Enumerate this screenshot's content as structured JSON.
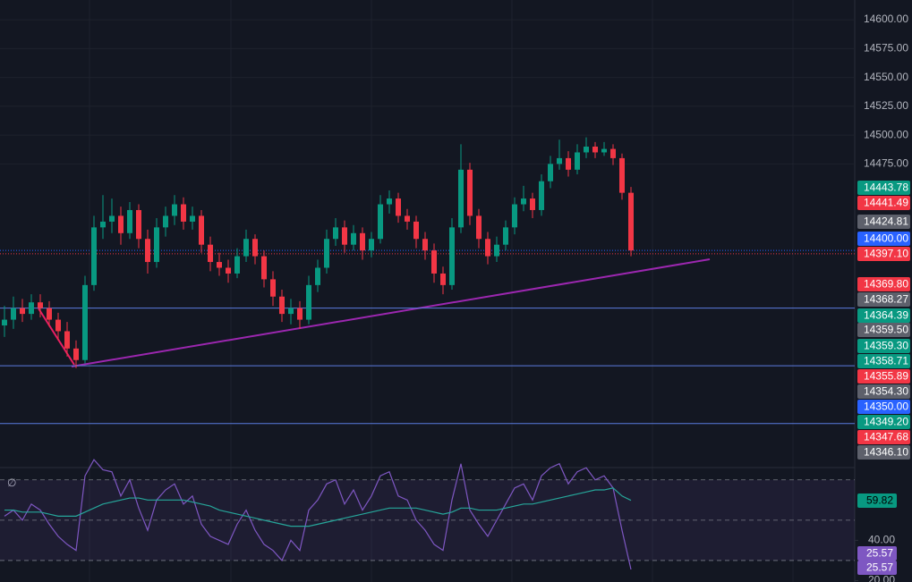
{
  "chart_data": {
    "type": "candlestick",
    "ylim": [
      14211.8,
      14617.1
    ],
    "yticks": [
      {
        "value": 14600,
        "label": "14600.00"
      },
      {
        "value": 14575,
        "label": "14575.00"
      },
      {
        "value": 14550,
        "label": "14550.00"
      },
      {
        "value": 14525,
        "label": "14525.00"
      },
      {
        "value": 14500,
        "label": "14500.00"
      },
      {
        "value": 14475,
        "label": "14475.00"
      }
    ],
    "up_color": "#089981",
    "down_color": "#f23645",
    "candles": [
      [
        14335,
        14352,
        14325,
        14340
      ],
      [
        14340,
        14360,
        14332,
        14350
      ],
      [
        14350,
        14358,
        14338,
        14345
      ],
      [
        14345,
        14362,
        14340,
        14355
      ],
      [
        14355,
        14362,
        14342,
        14350
      ],
      [
        14350,
        14356,
        14334,
        14340
      ],
      [
        14340,
        14346,
        14322,
        14330
      ],
      [
        14330,
        14338,
        14308,
        14315
      ],
      [
        14315,
        14322,
        14298,
        14305
      ],
      [
        14305,
        14378,
        14302,
        14370
      ],
      [
        14370,
        14430,
        14365,
        14420
      ],
      [
        14420,
        14448,
        14410,
        14425
      ],
      [
        14425,
        14445,
        14415,
        14430
      ],
      [
        14430,
        14438,
        14405,
        14415
      ],
      [
        14415,
        14442,
        14410,
        14435
      ],
      [
        14435,
        14440,
        14402,
        14410
      ],
      [
        14410,
        14418,
        14380,
        14390
      ],
      [
        14390,
        14428,
        14385,
        14420
      ],
      [
        14420,
        14438,
        14412,
        14430
      ],
      [
        14430,
        14448,
        14422,
        14440
      ],
      [
        14440,
        14446,
        14418,
        14425
      ],
      [
        14425,
        14438,
        14418,
        14430
      ],
      [
        14430,
        14435,
        14398,
        14405
      ],
      [
        14405,
        14412,
        14382,
        14390
      ],
      [
        14390,
        14398,
        14378,
        14385
      ],
      [
        14385,
        14392,
        14372,
        14380
      ],
      [
        14380,
        14402,
        14376,
        14395
      ],
      [
        14395,
        14418,
        14390,
        14410
      ],
      [
        14410,
        14414,
        14388,
        14395
      ],
      [
        14395,
        14400,
        14368,
        14375
      ],
      [
        14375,
        14382,
        14352,
        14360
      ],
      [
        14360,
        14366,
        14338,
        14345
      ],
      [
        14345,
        14358,
        14336,
        14350
      ],
      [
        14350,
        14356,
        14332,
        14340
      ],
      [
        14340,
        14378,
        14336,
        14370
      ],
      [
        14370,
        14392,
        14364,
        14385
      ],
      [
        14385,
        14418,
        14380,
        14410
      ],
      [
        14410,
        14428,
        14404,
        14420
      ],
      [
        14420,
        14426,
        14398,
        14405
      ],
      [
        14405,
        14422,
        14400,
        14415
      ],
      [
        14415,
        14420,
        14392,
        14400
      ],
      [
        14400,
        14416,
        14394,
        14410
      ],
      [
        14410,
        14448,
        14406,
        14440
      ],
      [
        14440,
        14452,
        14432,
        14445
      ],
      [
        14445,
        14450,
        14424,
        14430
      ],
      [
        14430,
        14436,
        14418,
        14425
      ],
      [
        14425,
        14430,
        14402,
        14410
      ],
      [
        14410,
        14416,
        14392,
        14400
      ],
      [
        14400,
        14406,
        14372,
        14380
      ],
      [
        14380,
        14386,
        14362,
        14370
      ],
      [
        14370,
        14428,
        14366,
        14420
      ],
      [
        14420,
        14492,
        14415,
        14470
      ],
      [
        14470,
        14476,
        14422,
        14430
      ],
      [
        14430,
        14436,
        14402,
        14410
      ],
      [
        14410,
        14416,
        14388,
        14395
      ],
      [
        14395,
        14412,
        14390,
        14405
      ],
      [
        14405,
        14426,
        14400,
        14420
      ],
      [
        14420,
        14446,
        14414,
        14440
      ],
      [
        14440,
        14456,
        14434,
        14445
      ],
      [
        14445,
        14450,
        14428,
        14435
      ],
      [
        14435,
        14466,
        14430,
        14460
      ],
      [
        14460,
        14482,
        14454,
        14475
      ],
      [
        14475,
        14496,
        14470,
        14480
      ],
      [
        14480,
        14486,
        14464,
        14470
      ],
      [
        14470,
        14492,
        14466,
        14485
      ],
      [
        14485,
        14498,
        14480,
        14490
      ],
      [
        14490,
        14494,
        14480,
        14485
      ],
      [
        14485,
        14494,
        14482,
        14488
      ],
      [
        14488,
        14492,
        14474,
        14480
      ],
      [
        14480,
        14484,
        14444,
        14450
      ],
      [
        14450,
        14455,
        14395,
        14400
      ]
    ],
    "levels": [
      14400,
      14397.1,
      14350,
      14300,
      14250
    ],
    "level_colors": [
      "#2962ff",
      "#f23645",
      "#5b7be0",
      "#5b7be0",
      "#5b7be0"
    ],
    "price_labels": [
      {
        "text": "14443.78",
        "color": "#089981"
      },
      {
        "text": "14441.49",
        "color": "#f23645"
      },
      {
        "text": "14424.81",
        "color": "#5d606b"
      },
      {
        "text": "14400.00",
        "color": "#2962ff"
      },
      {
        "text": "14397.10",
        "color": "#f23645"
      },
      {
        "text": "14369.80",
        "color": "#f23645"
      },
      {
        "text": "14368.27",
        "color": "#5d606b"
      },
      {
        "text": "14364.39",
        "color": "#089981"
      },
      {
        "text": "14359.50",
        "color": "#5d606b"
      },
      {
        "text": "14359.30",
        "color": "#089981"
      },
      {
        "text": "14358.71",
        "color": "#089981"
      },
      {
        "text": "14355.89",
        "color": "#f23645"
      },
      {
        "text": "14354.30",
        "color": "#5d606b"
      },
      {
        "text": "14350.00",
        "color": "#2962ff"
      },
      {
        "text": "14349.20",
        "color": "#089981"
      },
      {
        "text": "14347.68",
        "color": "#f23645"
      },
      {
        "text": "14346.10",
        "color": "#5d606b"
      }
    ],
    "rsi": {
      "ylim": [
        19.33,
        73
      ],
      "yticks": [
        {
          "value": 40,
          "label": "40.00"
        },
        {
          "value": 20,
          "label": "20.00"
        }
      ],
      "bands": [
        70,
        50,
        30
      ],
      "series": [
        {
          "name": "RSI",
          "color": "#7e57c2",
          "values": [
            52,
            55,
            50,
            58,
            55,
            48,
            42,
            38,
            35,
            72,
            80,
            75,
            74,
            62,
            70,
            56,
            45,
            60,
            65,
            68,
            58,
            62,
            48,
            42,
            40,
            38,
            48,
            55,
            45,
            38,
            35,
            30,
            40,
            35,
            55,
            60,
            68,
            70,
            58,
            65,
            55,
            62,
            72,
            74,
            62,
            60,
            50,
            45,
            38,
            35,
            60,
            78,
            55,
            48,
            42,
            50,
            58,
            66,
            68,
            60,
            72,
            76,
            78,
            68,
            74,
            76,
            70,
            72,
            66,
            45,
            25.57
          ]
        },
        {
          "name": "RSI-based MA",
          "color": "#26a69a",
          "values": [
            55,
            55,
            54,
            54,
            54,
            53,
            52,
            52,
            52,
            54,
            56,
            58,
            59,
            60,
            61,
            61,
            60,
            60,
            60,
            60,
            60,
            59,
            58,
            57,
            55,
            54,
            53,
            52,
            51,
            50,
            49,
            48,
            47,
            47,
            47,
            48,
            49,
            50,
            51,
            52,
            53,
            54,
            55,
            56,
            56,
            56,
            56,
            55,
            54,
            53,
            54,
            56,
            56,
            55,
            55,
            55,
            56,
            57,
            58,
            58,
            59,
            60,
            61,
            62,
            63,
            64,
            65,
            65,
            66,
            62,
            59.82
          ]
        }
      ]
    }
  }
}
